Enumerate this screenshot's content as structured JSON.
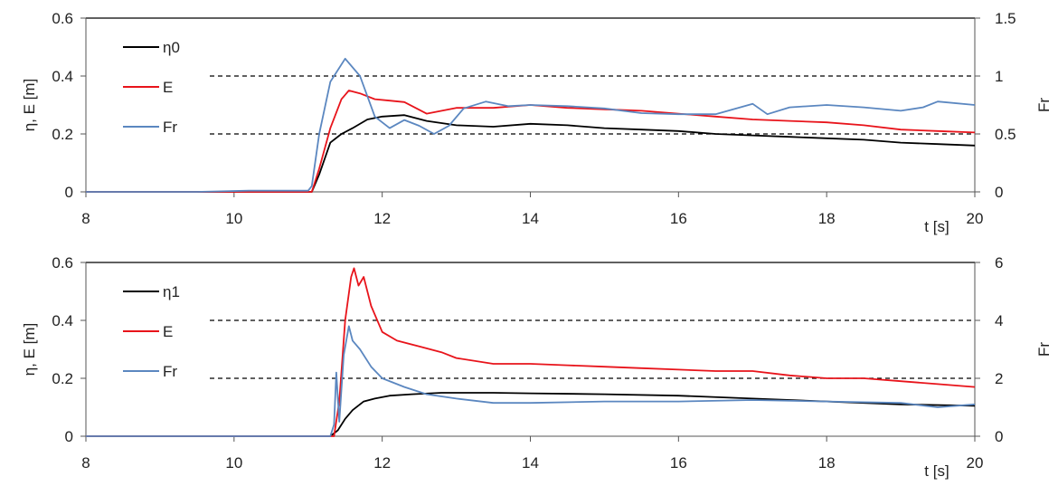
{
  "chart_data": [
    {
      "type": "line",
      "ylabel": "η, E  [m]",
      "y2label": "Fr",
      "xlabel": "t [s]",
      "xlim": [
        8,
        20
      ],
      "ylim": [
        0,
        0.6
      ],
      "y2lim": [
        0,
        1.5
      ],
      "xticks": [
        8,
        10,
        12,
        14,
        16,
        18,
        20
      ],
      "yticks": [
        0,
        0.2,
        0.4,
        0.6
      ],
      "y2ticks": [
        0,
        0.5,
        1,
        1.5
      ],
      "xtick_labels": [
        "8",
        "10",
        "12",
        "14",
        "16",
        "18",
        "20"
      ],
      "ytick_labels": [
        "0",
        "0.2",
        "0.4",
        "0.6"
      ],
      "y2tick_labels": [
        "0",
        "0.5",
        "1",
        "1.5"
      ],
      "grid": "dashed horizontal",
      "legend_position": "top-left",
      "series": [
        {
          "name": "η0",
          "color": "#000000",
          "axis": "left",
          "x": [
            8,
            10,
            11.05,
            11.15,
            11.3,
            11.45,
            11.6,
            11.8,
            12.0,
            12.3,
            12.6,
            13.0,
            13.5,
            14.0,
            14.5,
            15.0,
            15.5,
            16.0,
            16.5,
            17.0,
            17.5,
            18.0,
            18.5,
            19.0,
            19.5,
            20.0
          ],
          "y": [
            0,
            0,
            0,
            0.06,
            0.17,
            0.2,
            0.22,
            0.25,
            0.26,
            0.265,
            0.245,
            0.23,
            0.225,
            0.235,
            0.23,
            0.22,
            0.215,
            0.21,
            0.2,
            0.195,
            0.19,
            0.185,
            0.18,
            0.17,
            0.165,
            0.16
          ]
        },
        {
          "name": "E",
          "color": "#e8141b",
          "axis": "left",
          "x": [
            8,
            10,
            11.05,
            11.15,
            11.3,
            11.45,
            11.55,
            11.7,
            11.9,
            12.1,
            12.3,
            12.6,
            13.0,
            13.5,
            14.0,
            14.5,
            15.0,
            15.5,
            16.0,
            16.5,
            17.0,
            17.5,
            18.0,
            18.5,
            19.0,
            19.5,
            20.0
          ],
          "y": [
            0,
            0,
            0,
            0.08,
            0.22,
            0.32,
            0.35,
            0.34,
            0.32,
            0.315,
            0.31,
            0.27,
            0.29,
            0.29,
            0.3,
            0.29,
            0.285,
            0.28,
            0.27,
            0.26,
            0.25,
            0.245,
            0.24,
            0.23,
            0.215,
            0.21,
            0.205
          ]
        },
        {
          "name": "Fr",
          "color": "#5b87c0",
          "axis": "right",
          "x": [
            8,
            9.5,
            10.2,
            11.0,
            11.05,
            11.15,
            11.3,
            11.5,
            11.7,
            11.9,
            12.1,
            12.3,
            12.5,
            12.7,
            12.9,
            13.1,
            13.4,
            13.7,
            14.0,
            14.5,
            15.0,
            15.5,
            16.0,
            16.5,
            17.0,
            17.2,
            17.5,
            18.0,
            18.5,
            19.0,
            19.3,
            19.5,
            20.0
          ],
          "y": [
            0,
            0,
            0.01,
            0.01,
            0.05,
            0.5,
            0.95,
            1.15,
            1.0,
            0.65,
            0.55,
            0.62,
            0.57,
            0.5,
            0.57,
            0.72,
            0.78,
            0.74,
            0.75,
            0.74,
            0.72,
            0.68,
            0.67,
            0.67,
            0.76,
            0.67,
            0.73,
            0.75,
            0.73,
            0.7,
            0.73,
            0.78,
            0.75
          ]
        }
      ]
    },
    {
      "type": "line",
      "ylabel": "η, E  [m]",
      "y2label": "Fr",
      "xlabel": "t [s]",
      "xlim": [
        8,
        20
      ],
      "ylim": [
        0,
        0.6
      ],
      "y2lim": [
        0,
        6
      ],
      "xticks": [
        8,
        10,
        12,
        14,
        16,
        18,
        20
      ],
      "yticks": [
        0,
        0.2,
        0.4,
        0.6
      ],
      "y2ticks": [
        0,
        2,
        4,
        6
      ],
      "xtick_labels": [
        "8",
        "10",
        "12",
        "14",
        "16",
        "18",
        "20"
      ],
      "ytick_labels": [
        "0",
        "0.2",
        "0.4",
        "0.6"
      ],
      "y2tick_labels": [
        "0",
        "2",
        "4",
        "6"
      ],
      "grid": "dashed horizontal",
      "legend_position": "top-left",
      "series": [
        {
          "name": "η1",
          "color": "#000000",
          "axis": "left",
          "x": [
            8,
            11.3,
            11.4,
            11.5,
            11.6,
            11.75,
            11.9,
            12.1,
            12.4,
            12.8,
            13.5,
            14.0,
            15.0,
            16.0,
            17.0,
            18.0,
            19.0,
            20.0
          ],
          "y": [
            0,
            0,
            0.02,
            0.06,
            0.09,
            0.12,
            0.13,
            0.14,
            0.145,
            0.15,
            0.15,
            0.148,
            0.145,
            0.14,
            0.13,
            0.12,
            0.11,
            0.105
          ]
        },
        {
          "name": "E",
          "color": "#e8141b",
          "axis": "left",
          "x": [
            8,
            11.35,
            11.42,
            11.5,
            11.58,
            11.62,
            11.68,
            11.75,
            11.85,
            12.0,
            12.2,
            12.5,
            12.8,
            13.0,
            13.5,
            14.0,
            14.5,
            15.0,
            15.5,
            16.0,
            16.5,
            17.0,
            17.5,
            18.0,
            18.5,
            19.0,
            19.5,
            20.0
          ],
          "y": [
            0,
            0,
            0.12,
            0.4,
            0.55,
            0.58,
            0.52,
            0.55,
            0.45,
            0.36,
            0.33,
            0.31,
            0.29,
            0.27,
            0.25,
            0.25,
            0.245,
            0.24,
            0.235,
            0.23,
            0.225,
            0.225,
            0.21,
            0.2,
            0.2,
            0.19,
            0.18,
            0.17
          ]
        },
        {
          "name": "Fr",
          "color": "#5b87c0",
          "axis": "right",
          "x": [
            8,
            11.3,
            11.35,
            11.38,
            11.42,
            11.48,
            11.55,
            11.6,
            11.7,
            11.85,
            12.0,
            12.3,
            12.6,
            13.0,
            13.5,
            14.0,
            15.0,
            16.0,
            17.0,
            18.0,
            19.0,
            19.5,
            20.0
          ],
          "y": [
            0,
            0,
            0.4,
            2.2,
            0.5,
            2.8,
            3.8,
            3.3,
            3.0,
            2.4,
            2.0,
            1.7,
            1.45,
            1.3,
            1.15,
            1.15,
            1.2,
            1.2,
            1.25,
            1.2,
            1.15,
            1.0,
            1.1
          ]
        }
      ]
    }
  ]
}
